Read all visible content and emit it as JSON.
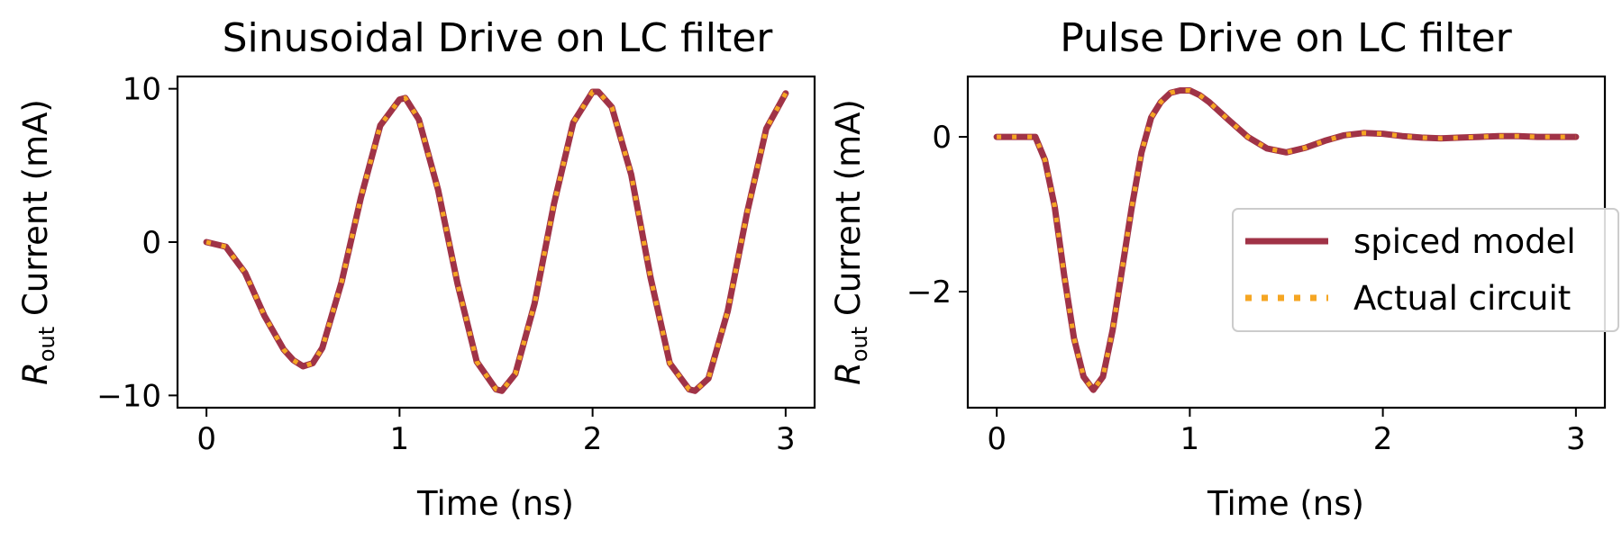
{
  "colors": {
    "model": "#a03347",
    "actual": "#f5a623",
    "axis": "#000000",
    "legend_border": "#cccccc"
  },
  "chart_data": [
    {
      "type": "line",
      "title": "Sinusoidal Drive on LC filter",
      "xlabel": "Time (ns)",
      "ylabel_main": "R",
      "ylabel_sub": "out",
      "ylabel_rest": " Current (mA)",
      "xlim": [
        -0.15,
        3.15
      ],
      "ylim": [
        -10.8,
        10.8
      ],
      "xticks": [
        0,
        1,
        2,
        3
      ],
      "xtick_labels": [
        "0",
        "1",
        "2",
        "3"
      ],
      "yticks": [
        -10,
        0,
        10
      ],
      "ytick_labels": [
        "−10",
        "0",
        "10"
      ],
      "series": [
        {
          "x": [
            0,
            0.1,
            0.2,
            0.3,
            0.4,
            0.45,
            0.5,
            0.55,
            0.6,
            0.7,
            0.8,
            0.9,
            1.0,
            1.03,
            1.1,
            1.2,
            1.3,
            1.4,
            1.5,
            1.53,
            1.6,
            1.7,
            1.8,
            1.9,
            2.0,
            2.03,
            2.1,
            2.2,
            2.3,
            2.4,
            2.5,
            2.53,
            2.6,
            2.7,
            2.8,
            2.9,
            3.0
          ],
          "y": [
            0,
            -0.3,
            -2.0,
            -4.8,
            -7.0,
            -7.7,
            -8.1,
            -7.9,
            -6.9,
            -2.6,
            2.9,
            7.6,
            9.3,
            9.4,
            8.0,
            3.4,
            -2.7,
            -7.8,
            -9.6,
            -9.7,
            -8.6,
            -4.0,
            2.5,
            7.8,
            9.8,
            9.8,
            8.8,
            4.4,
            -2.3,
            -7.9,
            -9.6,
            -9.7,
            -8.9,
            -4.5,
            1.9,
            7.4,
            9.7
          ]
        }
      ]
    },
    {
      "type": "line",
      "title": "Pulse Drive on LC filter",
      "xlabel": "Time (ns)",
      "ylabel_main": "R",
      "ylabel_sub": "out",
      "ylabel_rest": " Current (mA)",
      "xlim": [
        -0.15,
        3.15
      ],
      "ylim": [
        -3.5,
        0.78
      ],
      "xticks": [
        0,
        1,
        2,
        3
      ],
      "xtick_labels": [
        "0",
        "1",
        "2",
        "3"
      ],
      "yticks": [
        -2,
        0
      ],
      "ytick_labels": [
        "−2",
        "0"
      ],
      "legend": {
        "position": "center-right",
        "entries": [
          "spiced model",
          "Actual circuit"
        ]
      },
      "series": [
        {
          "name": "spiced model",
          "x": [
            0,
            0.1,
            0.2,
            0.25,
            0.3,
            0.35,
            0.4,
            0.45,
            0.5,
            0.55,
            0.6,
            0.65,
            0.7,
            0.75,
            0.8,
            0.85,
            0.9,
            0.95,
            1.0,
            1.05,
            1.1,
            1.2,
            1.3,
            1.4,
            1.5,
            1.6,
            1.7,
            1.8,
            1.9,
            2.0,
            2.1,
            2.2,
            2.3,
            2.4,
            2.5,
            2.6,
            2.7,
            2.8,
            2.9,
            3.0
          ],
          "y": [
            0,
            0,
            0,
            -0.3,
            -0.9,
            -1.8,
            -2.6,
            -3.1,
            -3.27,
            -3.1,
            -2.5,
            -1.7,
            -0.9,
            -0.2,
            0.25,
            0.45,
            0.57,
            0.6,
            0.6,
            0.54,
            0.45,
            0.22,
            0.0,
            -0.15,
            -0.2,
            -0.14,
            -0.05,
            0.02,
            0.05,
            0.04,
            0.01,
            -0.01,
            -0.02,
            -0.01,
            0.0,
            0.01,
            0.01,
            0.0,
            0.0,
            0.0
          ]
        },
        {
          "name": "Actual circuit",
          "x": [
            0,
            0.1,
            0.2,
            0.25,
            0.3,
            0.35,
            0.4,
            0.45,
            0.5,
            0.55,
            0.6,
            0.65,
            0.7,
            0.75,
            0.8,
            0.85,
            0.9,
            0.95,
            1.0,
            1.05,
            1.1,
            1.2,
            1.3,
            1.4,
            1.5,
            1.6,
            1.7,
            1.8,
            1.9,
            2.0,
            2.1,
            2.2,
            2.3,
            2.4,
            2.5,
            2.6,
            2.7,
            2.8,
            2.9,
            3.0
          ],
          "y": [
            0,
            0,
            0,
            -0.3,
            -0.9,
            -1.8,
            -2.6,
            -3.1,
            -3.27,
            -3.1,
            -2.5,
            -1.7,
            -0.9,
            -0.2,
            0.25,
            0.45,
            0.57,
            0.6,
            0.6,
            0.54,
            0.45,
            0.22,
            0.0,
            -0.15,
            -0.2,
            -0.14,
            -0.05,
            0.02,
            0.05,
            0.04,
            0.01,
            -0.01,
            -0.02,
            -0.01,
            0.0,
            0.01,
            0.01,
            0.0,
            0.0,
            0.0
          ]
        }
      ]
    }
  ]
}
